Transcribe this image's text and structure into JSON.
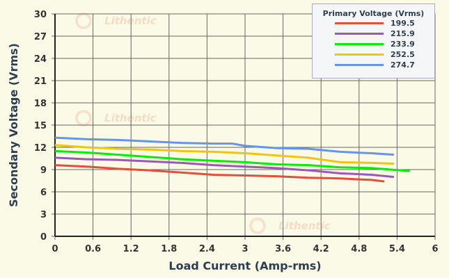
{
  "chart_data": {
    "type": "line",
    "xlabel": "Load Current (Amp-rms)",
    "ylabel": "Secondary Voltage (Vrms)",
    "xlim": [
      0,
      6
    ],
    "ylim": [
      0,
      30
    ],
    "xticks": [
      "0",
      "0.6",
      "1.2",
      "1.8",
      "2.4",
      "3",
      "3.6",
      "4.2",
      "4.8",
      "5.4",
      "6"
    ],
    "yticks": [
      "0",
      "3",
      "6",
      "9",
      "12",
      "15",
      "18",
      "21",
      "24",
      "27",
      "30"
    ],
    "grid": true,
    "legend_title": "Primary Voltage (Vrms)",
    "legend_position": "top-right",
    "watermark": "Lithentic",
    "series": [
      {
        "name": "199.5",
        "color": "#e74c3c",
        "x": [
          0,
          0.5,
          1,
          1.5,
          2,
          2.5,
          3,
          3.5,
          4,
          4.5,
          5,
          5.2
        ],
        "y": [
          9.6,
          9.4,
          9.1,
          8.9,
          8.6,
          8.3,
          8.2,
          8.1,
          7.9,
          7.8,
          7.6,
          7.4
        ]
      },
      {
        "name": "215.9",
        "color": "#9b59b6",
        "x": [
          0,
          0.5,
          1,
          1.5,
          2,
          2.5,
          3,
          3.5,
          4,
          4.5,
          5,
          5.35
        ],
        "y": [
          10.6,
          10.4,
          10.3,
          10.1,
          9.9,
          9.6,
          9.4,
          9.2,
          8.9,
          8.5,
          8.3,
          8.0
        ]
      },
      {
        "name": "233.9",
        "color": "#00ee00",
        "x": [
          0,
          0.5,
          1,
          1.5,
          2,
          2.5,
          3,
          3.5,
          4,
          4.5,
          5,
          5.6
        ],
        "y": [
          11.5,
          11.3,
          11.0,
          10.7,
          10.4,
          10.2,
          10.0,
          9.7,
          9.6,
          9.3,
          9.2,
          8.8
        ]
      },
      {
        "name": "252.5",
        "color": "#f1c40f",
        "x": [
          0,
          0.5,
          1,
          1.5,
          2,
          2.5,
          3,
          3.5,
          4,
          4.5,
          5,
          5.35
        ],
        "y": [
          12.3,
          12.0,
          11.8,
          11.7,
          11.5,
          11.4,
          11.2,
          10.9,
          10.6,
          10.0,
          9.9,
          9.8
        ]
      },
      {
        "name": "274.7",
        "color": "#6495ed",
        "x": [
          0,
          0.5,
          1,
          1.5,
          2,
          2.5,
          2.8,
          3,
          3.5,
          4,
          4.5,
          5,
          5.35
        ],
        "y": [
          13.3,
          13.1,
          13.0,
          12.8,
          12.6,
          12.5,
          12.5,
          12.2,
          11.9,
          11.8,
          11.4,
          11.2,
          11.0
        ]
      }
    ]
  }
}
